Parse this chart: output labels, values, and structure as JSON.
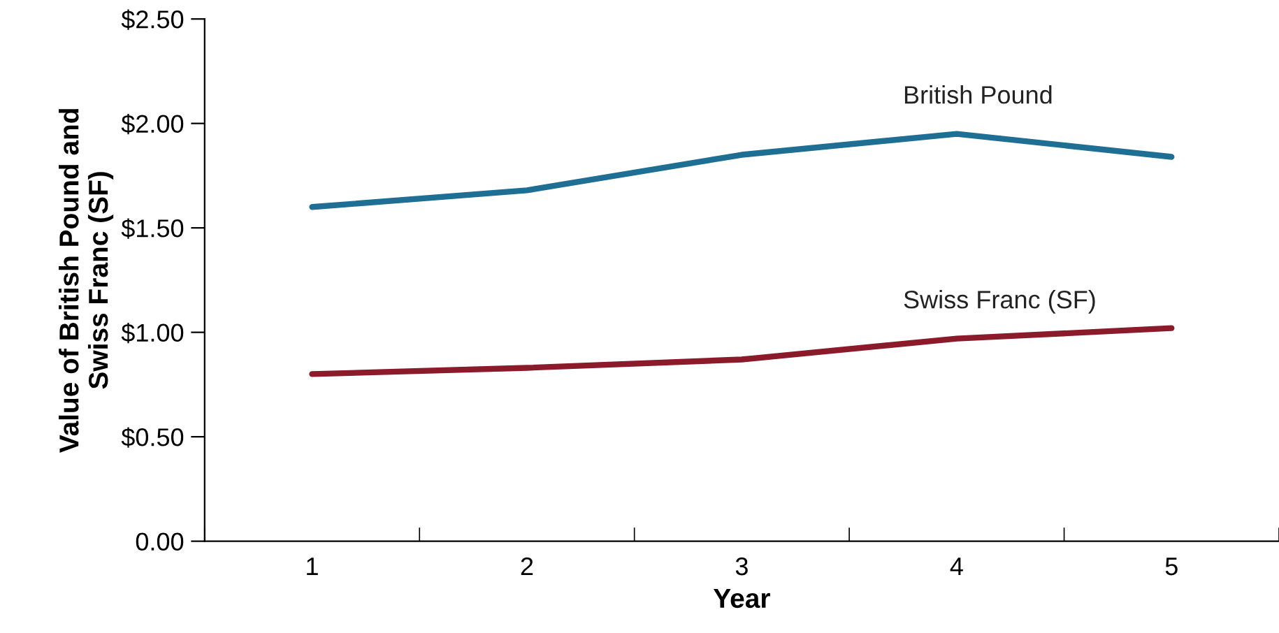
{
  "chart_data": {
    "type": "line",
    "xlabel": "Year",
    "ylabel": "Value of British Pound and\nSwiss Franc (SF)",
    "categories": [
      "1",
      "2",
      "3",
      "4",
      "5"
    ],
    "series": [
      {
        "name": "British Pound",
        "color": "#1f6e94",
        "values": [
          1.6,
          1.68,
          1.85,
          1.95,
          1.84
        ]
      },
      {
        "name": "Swiss Franc (SF)",
        "color": "#8b1a2b",
        "values": [
          0.8,
          0.83,
          0.87,
          0.97,
          1.02
        ]
      }
    ],
    "ylim": [
      0,
      2.5
    ],
    "yticks": [
      {
        "value": 0,
        "label": "0.00"
      },
      {
        "value": 0.5,
        "label": "$0.50"
      },
      {
        "value": 1,
        "label": "$1.00"
      },
      {
        "value": 1.5,
        "label": "$1.50"
      },
      {
        "value": 2,
        "label": "$2.00"
      },
      {
        "value": 2.5,
        "label": "$2.50"
      }
    ],
    "grid": false,
    "legend": false,
    "marker": "none",
    "line_style": "solid"
  }
}
